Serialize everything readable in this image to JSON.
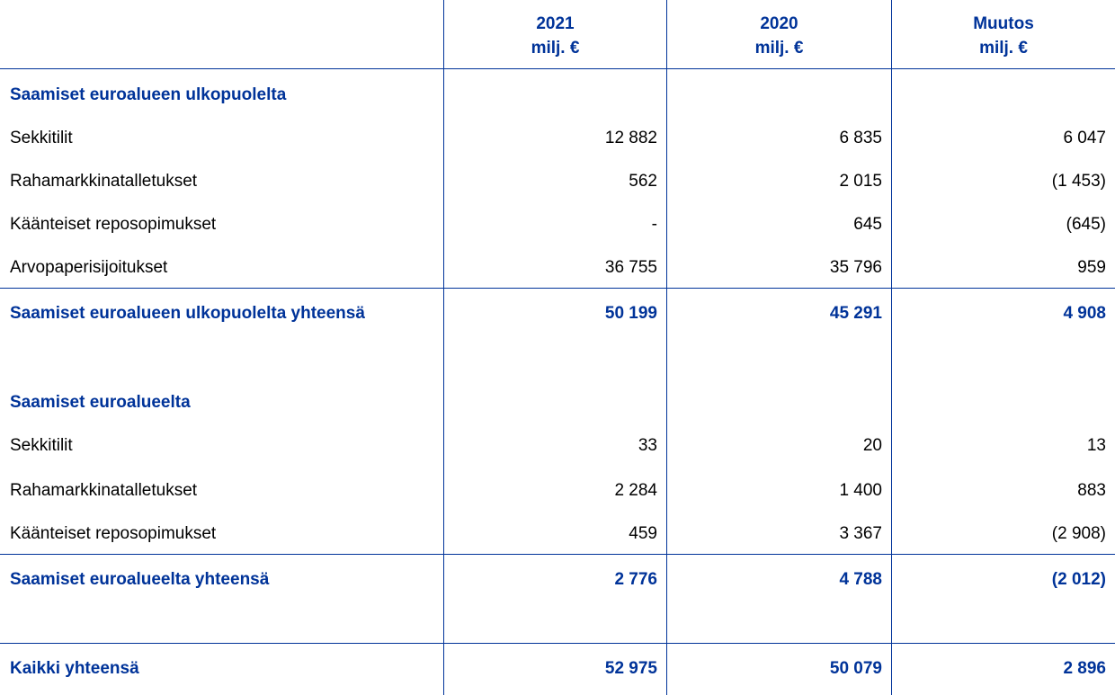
{
  "colors": {
    "accent": "#003399"
  },
  "header": {
    "columns": [
      {
        "line1": "2021",
        "line2": "milj. €"
      },
      {
        "line1": "2020",
        "line2": "milj. €"
      },
      {
        "line1": "Muutos",
        "line2": "milj. €"
      }
    ]
  },
  "rows": [
    {
      "label": "Saamiset euroalueen ulkopuolelta",
      "type": "section"
    },
    {
      "label": "Sekkitilit",
      "type": "item",
      "values": [
        "12 882",
        "6 835",
        "6 047"
      ]
    },
    {
      "label": "Rahamarkkinatalletukset",
      "type": "item",
      "values": [
        "562",
        "2 015",
        "(1 453)"
      ]
    },
    {
      "label": "Käänteiset reposopimukset",
      "type": "item",
      "values": [
        "-",
        "645",
        "(645)"
      ]
    },
    {
      "label": "Arvopaperisijoitukset",
      "type": "item",
      "values": [
        "36 755",
        "35 796",
        "959"
      ]
    },
    {
      "label": "Saamiset euroalueen ulkopuolelta yhteensä",
      "type": "total",
      "values": [
        "50 199",
        "45 291",
        "4 908"
      ]
    },
    {
      "label": "Saamiset euroalueelta",
      "type": "section"
    },
    {
      "label": "Sekkitilit",
      "type": "item",
      "values": [
        "33",
        "20",
        "13"
      ]
    },
    {
      "label": "Rahamarkkinatalletukset",
      "type": "item",
      "values": [
        "2 284",
        "1 400",
        "883"
      ]
    },
    {
      "label": "Käänteiset reposopimukset",
      "type": "item",
      "values": [
        "459",
        "3 367",
        "(2 908)"
      ]
    },
    {
      "label": "Saamiset euroalueelta yhteensä",
      "type": "total",
      "values": [
        "2 776",
        "4 788",
        "(2 012)"
      ]
    },
    {
      "label": "Kaikki yhteensä",
      "type": "total",
      "values": [
        "52 975",
        "50 079",
        "2 896"
      ]
    }
  ]
}
